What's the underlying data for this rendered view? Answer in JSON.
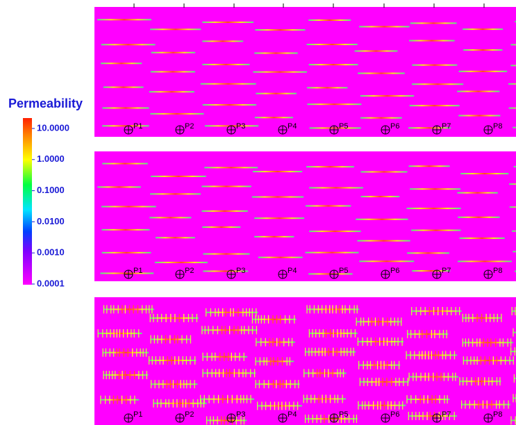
{
  "legend": {
    "title": "Permeability",
    "labels": [
      "10.0000",
      "1.0000",
      "0.1000",
      "0.0100",
      "0.0010",
      "0.0001"
    ]
  },
  "panels": [
    {
      "wells": [
        "P1",
        "P2",
        "P3",
        "P4",
        "P5",
        "P6",
        "P7",
        "P8"
      ]
    },
    {
      "wells": [
        "P1",
        "P2",
        "P3",
        "P4",
        "P5",
        "P6",
        "P7",
        "P8"
      ]
    },
    {
      "wells": [
        "P1",
        "P2",
        "P3",
        "P4",
        "P5",
        "P6",
        "P7",
        "P8"
      ]
    }
  ]
}
